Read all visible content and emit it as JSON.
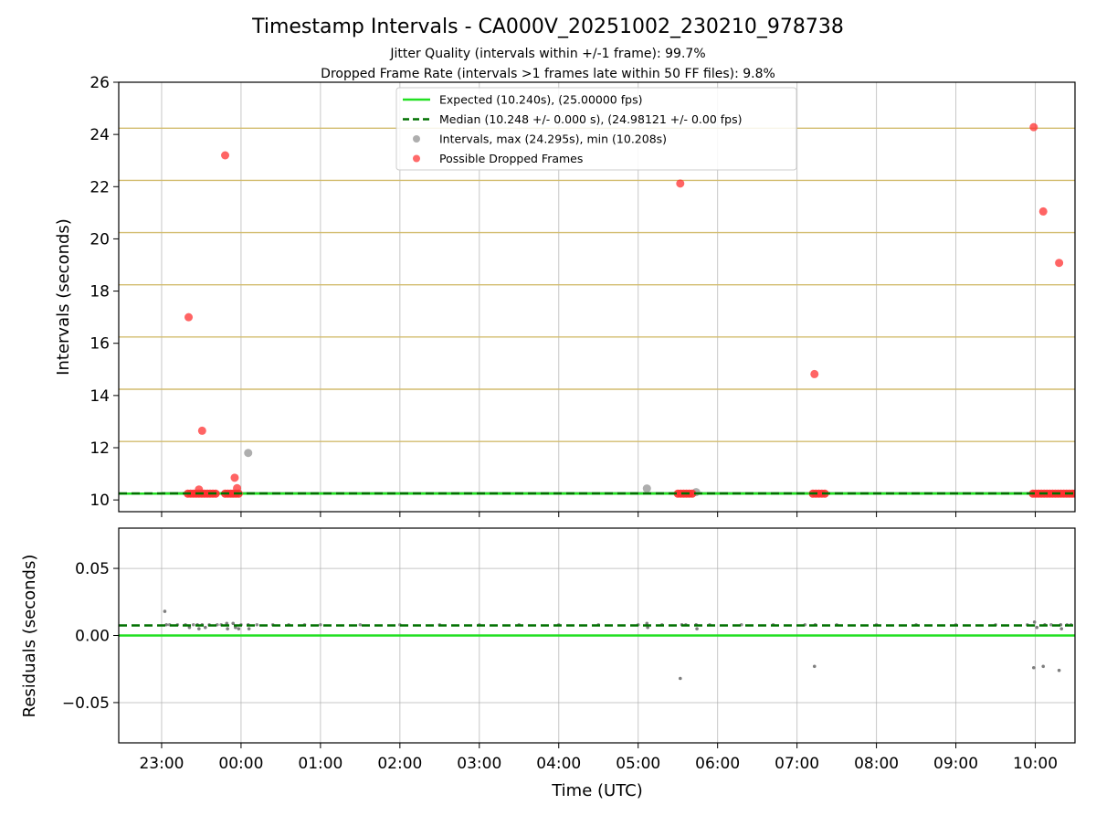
{
  "chart_data": {
    "title": "Timestamp Intervals - CA000V_20251002_230210_978738",
    "subtitle_lines": [
      "Jitter Quality (intervals within +/-1 frame): 99.7%",
      "Dropped Frame Rate (intervals >1 frames late within 50 FF files): 9.8%"
    ],
    "xlabel": "Time (UTC)",
    "x_units": "hours since 22:00 UTC",
    "xlim": [
      0.46,
      12.5
    ],
    "x_ticks": [
      {
        "value": 1,
        "label": "23:00"
      },
      {
        "value": 2,
        "label": "00:00"
      },
      {
        "value": 3,
        "label": "01:00"
      },
      {
        "value": 4,
        "label": "02:00"
      },
      {
        "value": 5,
        "label": "03:00"
      },
      {
        "value": 6,
        "label": "04:00"
      },
      {
        "value": 7,
        "label": "05:00"
      },
      {
        "value": 8,
        "label": "06:00"
      },
      {
        "value": 9,
        "label": "07:00"
      },
      {
        "value": 10,
        "label": "08:00"
      },
      {
        "value": 11,
        "label": "09:00"
      },
      {
        "value": 12,
        "label": "10:00"
      }
    ],
    "panels": [
      {
        "type": "scatter",
        "ylabel": "Intervals (seconds)",
        "ylim": [
          9.55,
          26
        ],
        "y_ticks": [
          {
            "value": 10,
            "label": "10"
          },
          {
            "value": 12,
            "label": "12"
          },
          {
            "value": 14,
            "label": "14"
          },
          {
            "value": 16,
            "label": "16"
          },
          {
            "value": 18,
            "label": "18"
          },
          {
            "value": 20,
            "label": "20"
          },
          {
            "value": 22,
            "label": "22"
          },
          {
            "value": 24,
            "label": "24"
          },
          {
            "value": 26,
            "label": "26"
          }
        ],
        "gold_lines": [
          10.24,
          12.24,
          14.24,
          16.24,
          18.24,
          20.24,
          22.24,
          24.24
        ],
        "expected_line": {
          "y": 10.24,
          "color": "#22e022"
        },
        "median_line": {
          "y": 10.248,
          "color": "#007000"
        },
        "band": {
          "x": [
            1.0,
            12.5
          ],
          "y": [
            10.2,
            10.3
          ],
          "color": "#3c9a3c"
        },
        "legend": [
          {
            "kind": "line",
            "color": "#22e022",
            "label": "Expected (10.240s), (25.00000 fps)"
          },
          {
            "kind": "dashed",
            "color": "#007000",
            "label": "Median (10.248 +/- 0.000 s), (24.98121 +/- 0.00 fps)"
          },
          {
            "kind": "dot",
            "color": "#a0a0a0",
            "label": "Intervals, max (24.295s), min (10.208s)"
          },
          {
            "kind": "dot",
            "color": "#ff5050",
            "label": "Possible Dropped Frames"
          }
        ],
        "intervals": {
          "color": "#a0a0a0",
          "points": [
            {
              "x": 2.09,
              "y": 11.8
            },
            {
              "x": 7.11,
              "y": 10.44
            },
            {
              "x": 7.73,
              "y": 10.3
            }
          ]
        },
        "dropped_frames": {
          "color": "#ff3030",
          "points": [
            {
              "x": 1.34,
              "y": 17.0
            },
            {
              "x": 1.8,
              "y": 23.2
            },
            {
              "x": 1.51,
              "y": 12.65
            },
            {
              "x": 1.47,
              "y": 10.4
            },
            {
              "x": 1.92,
              "y": 10.85
            },
            {
              "x": 1.95,
              "y": 10.45
            },
            {
              "x": 7.53,
              "y": 22.12
            },
            {
              "x": 9.22,
              "y": 14.82
            },
            {
              "x": 11.98,
              "y": 24.28
            },
            {
              "x": 12.1,
              "y": 21.05
            },
            {
              "x": 12.3,
              "y": 19.08
            }
          ],
          "clusters": [
            {
              "x_start": 1.33,
              "x_end": 1.68,
              "y": 10.24
            },
            {
              "x_start": 1.8,
              "x_end": 1.97,
              "y": 10.24
            },
            {
              "x_start": 7.5,
              "x_end": 7.68,
              "y": 10.24
            },
            {
              "x_start": 9.2,
              "x_end": 9.35,
              "y": 10.24
            },
            {
              "x_start": 11.97,
              "x_end": 12.5,
              "y": 10.24
            }
          ]
        }
      },
      {
        "type": "scatter",
        "ylabel": "Residuals (seconds)",
        "ylim": [
          -0.08,
          0.08
        ],
        "y_ticks": [
          {
            "value": 0.05,
            "label": "0.05"
          },
          {
            "value": 0.0,
            "label": "0.00"
          },
          {
            "value": -0.05,
            "label": "−0.05"
          }
        ],
        "expected_line": {
          "y": 0.0,
          "color": "#22e022"
        },
        "median_line": {
          "y": 0.0075,
          "color": "#007000"
        },
        "residuals": {
          "color": "#707070",
          "points": [
            {
              "x": 1.04,
              "y": 0.018
            },
            {
              "x": 1.06,
              "y": 0.008
            },
            {
              "x": 1.35,
              "y": 0.006
            },
            {
              "x": 1.45,
              "y": 0.008
            },
            {
              "x": 1.47,
              "y": 0.005
            },
            {
              "x": 1.51,
              "y": 0.008
            },
            {
              "x": 1.55,
              "y": 0.006
            },
            {
              "x": 1.82,
              "y": 0.009
            },
            {
              "x": 1.83,
              "y": 0.005
            },
            {
              "x": 1.9,
              "y": 0.009
            },
            {
              "x": 1.93,
              "y": 0.006
            },
            {
              "x": 1.97,
              "y": 0.005
            },
            {
              "x": 2.09,
              "y": 0.008
            },
            {
              "x": 2.1,
              "y": 0.005
            },
            {
              "x": 7.11,
              "y": 0.009
            },
            {
              "x": 7.12,
              "y": 0.006
            },
            {
              "x": 7.53,
              "y": -0.032
            },
            {
              "x": 7.55,
              "y": 0.008
            },
            {
              "x": 7.73,
              "y": 0.008
            },
            {
              "x": 7.74,
              "y": 0.005
            },
            {
              "x": 9.22,
              "y": -0.023
            },
            {
              "x": 9.23,
              "y": 0.008
            },
            {
              "x": 11.98,
              "y": -0.024
            },
            {
              "x": 11.99,
              "y": 0.01
            },
            {
              "x": 12.02,
              "y": 0.006
            },
            {
              "x": 12.1,
              "y": -0.023
            },
            {
              "x": 12.12,
              "y": 0.008
            },
            {
              "x": 12.3,
              "y": -0.026
            },
            {
              "x": 12.32,
              "y": 0.008
            },
            {
              "x": 12.33,
              "y": 0.005
            }
          ],
          "spread_xs": [
            1.1,
            1.2,
            1.3,
            1.4,
            1.6,
            1.7,
            1.75,
            2.0,
            2.2,
            2.4,
            2.6,
            2.8,
            3.0,
            3.5,
            4.0,
            4.5,
            5.0,
            5.5,
            6.0,
            6.5,
            7.0,
            7.3,
            7.6,
            7.9,
            8.3,
            8.7,
            9.1,
            9.5,
            10.0,
            10.5,
            11.0,
            11.5,
            11.9,
            12.2,
            12.4,
            12.45
          ]
        }
      }
    ]
  }
}
